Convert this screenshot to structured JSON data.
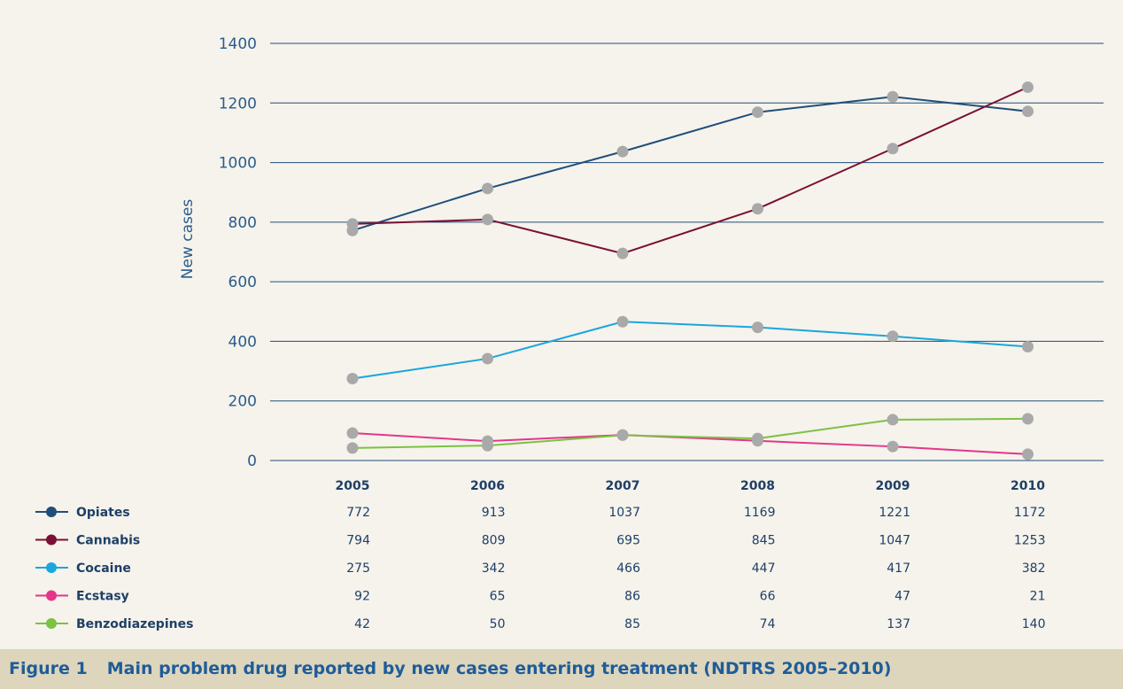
{
  "caption": {
    "label": "Figure 1",
    "text": "Main problem drug reported by new cases entering treatment (NDTRS 2005–2010)"
  },
  "chart_data": {
    "type": "line",
    "ylabel": "New cases",
    "ylim": [
      0,
      1400
    ],
    "yticks": [
      0,
      200,
      400,
      600,
      800,
      1000,
      1200,
      1400
    ],
    "grid": true,
    "legend": "table-below",
    "categories": [
      "2005",
      "2006",
      "2007",
      "2008",
      "2009",
      "2010"
    ],
    "marker_color": "#a9a9a9",
    "series": [
      {
        "name": "Opiates",
        "color": "#1f4e7a",
        "values": [
          772,
          913,
          1037,
          1169,
          1221,
          1172
        ]
      },
      {
        "name": "Cannabis",
        "color": "#7a1035",
        "values": [
          794,
          809,
          695,
          845,
          1047,
          1253
        ]
      },
      {
        "name": "Cocaine",
        "color": "#1aa6de",
        "values": [
          275,
          342,
          466,
          447,
          417,
          382
        ]
      },
      {
        "name": "Ecstasy",
        "color": "#e5358a",
        "values": [
          92,
          65,
          86,
          66,
          47,
          21
        ]
      },
      {
        "name": "Benzodiazepines",
        "color": "#7dc142",
        "values": [
          42,
          50,
          85,
          74,
          137,
          140
        ]
      }
    ]
  }
}
